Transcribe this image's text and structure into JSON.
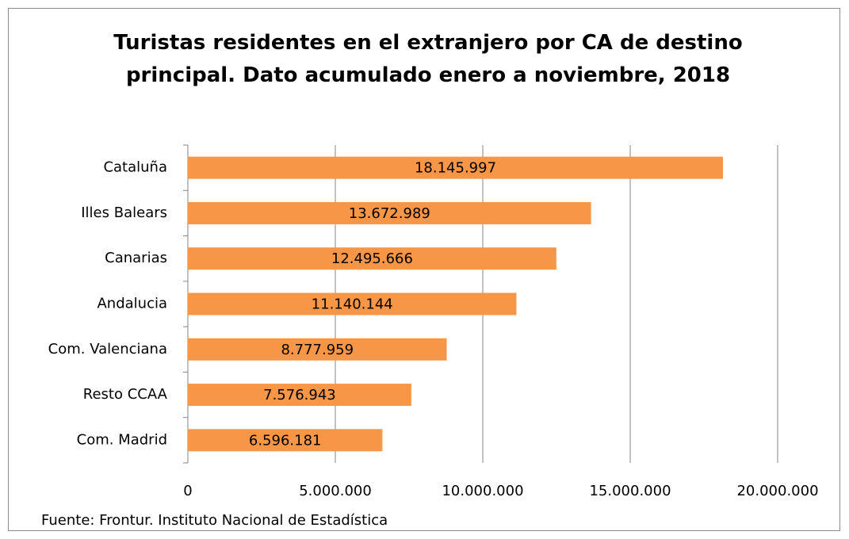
{
  "chart_data": {
    "type": "bar",
    "orientation": "horizontal",
    "title": "Turistas residentes en el extranjero por CA de destino principal. Dato acumulado enero a noviembre, 2018",
    "categories": [
      "Cataluña",
      "Illes Balears",
      "Canarias",
      "Andalucia",
      "Com. Valenciana",
      "Resto CCAA",
      "Com. Madrid"
    ],
    "values": [
      18145997,
      13672989,
      12495666,
      11140144,
      8777959,
      7576943,
      6596181
    ],
    "value_labels": [
      "18.145.997",
      "13.672.989",
      "12.495.666",
      "11.140.144",
      "8.777.959",
      "7.576.943",
      "6.596.181"
    ],
    "color": "#f79646",
    "xlim": [
      0,
      20000000
    ],
    "xticks": [
      0,
      {
        "value": 5000000,
        "label": "5.000.000"
      },
      {
        "value": 10000000,
        "label": "10.000.000"
      },
      {
        "value": 15000000,
        "label": "15.000.000"
      },
      {
        "value": 20000000,
        "label": "20.000.000"
      }
    ],
    "grid": true,
    "source": "Fuente: Frontur. Instituto Nacional de Estadística"
  }
}
